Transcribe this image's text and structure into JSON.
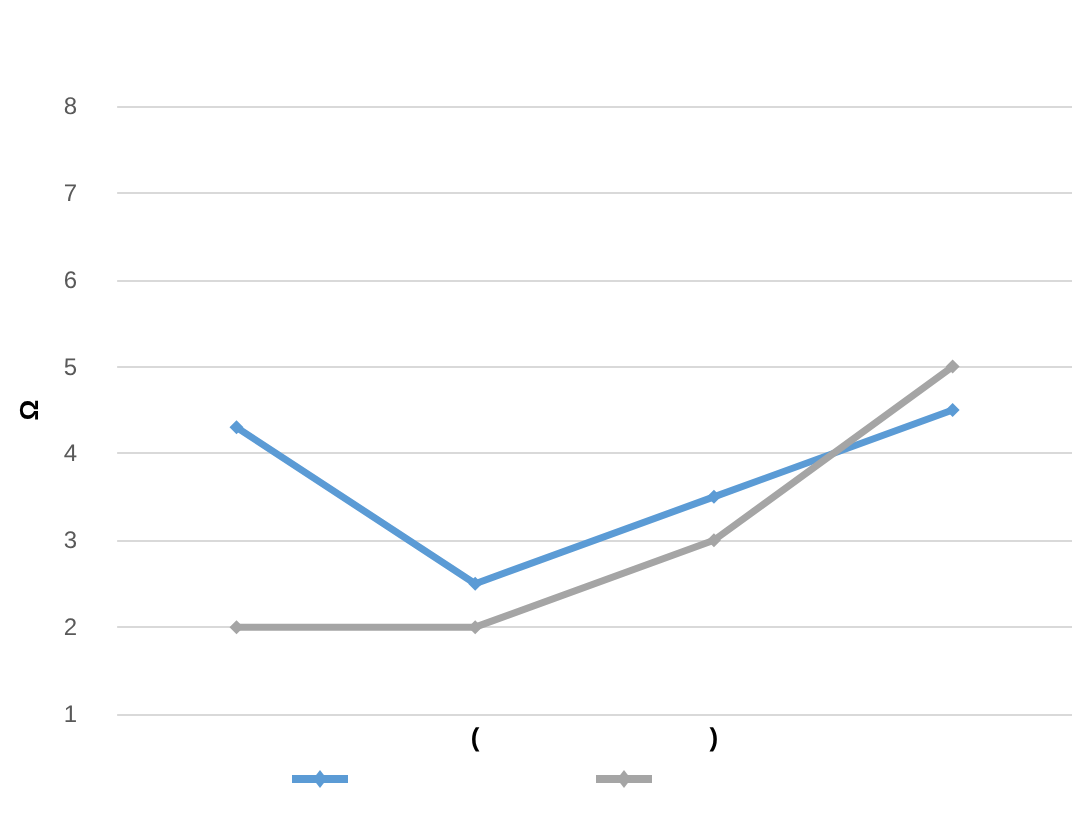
{
  "chart_data": {
    "type": "line",
    "ylabel": "Ω",
    "categories": [
      null,
      "(",
      ")",
      null
    ],
    "series": [
      {
        "color": "#5b9bd5",
        "values": [
          4.3,
          2.5,
          3.5,
          4.5
        ]
      },
      {
        "color": "#a5a5a5",
        "values": [
          2,
          2,
          3,
          5
        ]
      }
    ],
    "ylim": [
      1,
      8
    ],
    "yticks": [
      1,
      2,
      3,
      4,
      5,
      6,
      7,
      8
    ],
    "grid": "y",
    "marker": "diamond",
    "line_style": "solid"
  }
}
